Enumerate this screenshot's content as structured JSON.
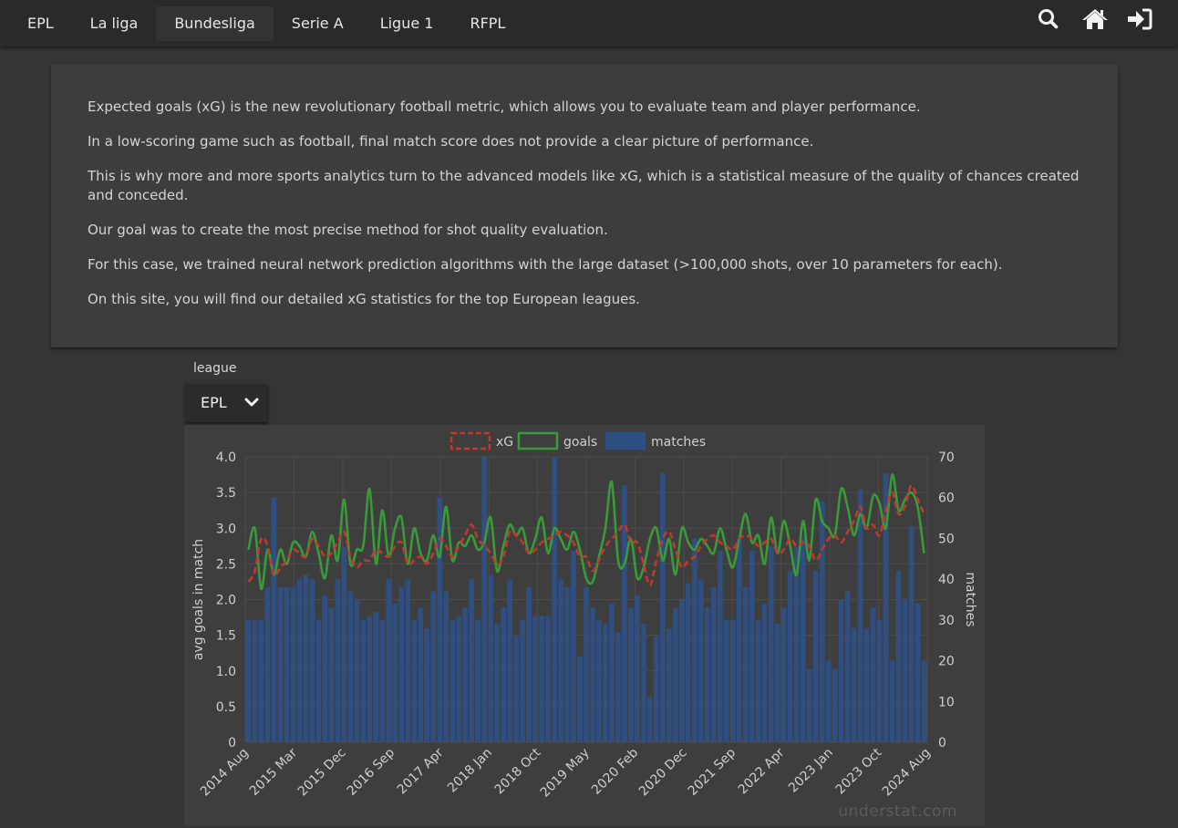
{
  "nav": {
    "items": [
      "EPL",
      "La liga",
      "Bundesliga",
      "Serie A",
      "Ligue 1",
      "RFPL"
    ],
    "active": "Bundesliga",
    "icons": [
      "search-icon",
      "home-icon",
      "sign-in-icon"
    ]
  },
  "info": {
    "paragraphs": [
      "Expected goals (xG) is the new revolutionary football metric, which allows you to evaluate team and player performance.",
      "In a low-scoring game such as football, final match score does not provide a clear picture of performance.",
      "This is why more and more sports analytics turn to the advanced models like xG, which is a statistical measure of the quality of chances created and conceded.",
      "Our goal was to create the most precise method for shot quality evaluation.",
      "For this case, we trained neural network prediction algorithms with the large dataset (>100,000 shots, over 10 parameters for each).",
      "On this site, you will find our detailed xG statistics for the top European leagues."
    ]
  },
  "filter": {
    "label": "league",
    "selected": "EPL"
  },
  "watermark": "understat.com",
  "colors": {
    "xg": "#c0392b",
    "goals": "#3a9a3a",
    "matches": "#2f4f82"
  },
  "chart_data": {
    "type": "bar",
    "legend": [
      "xG",
      "goals",
      "matches"
    ],
    "legend_position": "top",
    "ylabel_left": "avg goals in match",
    "ylabel_right": "matches",
    "ylim_left": [
      0,
      4.0
    ],
    "ylim_right": [
      0,
      70
    ],
    "left_ticks": [
      "0",
      "0.5",
      "1.0",
      "1.5",
      "2.0",
      "2.5",
      "3.0",
      "3.5",
      "4.0"
    ],
    "right_ticks": [
      "0",
      "10",
      "20",
      "30",
      "40",
      "50",
      "60",
      "70"
    ],
    "x_tick_labels": [
      "2014 Aug",
      "2015 Mar",
      "2015 Dec",
      "2016 Sep",
      "2017 Apr",
      "2018 Jan",
      "2018 Oct",
      "2019 May",
      "2020 Feb",
      "2020 Dec",
      "2021 Sep",
      "2022 Apr",
      "2023 Jan",
      "2023 Oct",
      "2024 Aug"
    ],
    "grid": true,
    "series": [
      {
        "name": "matches",
        "kind": "bar",
        "axis": "right",
        "values": [
          30,
          30,
          30,
          38,
          60,
          38,
          38,
          38,
          40,
          41,
          40,
          30,
          36,
          33,
          40,
          48,
          37,
          35,
          30,
          31,
          32,
          30,
          40,
          34,
          38,
          40,
          30,
          33,
          28,
          37,
          60,
          37,
          30,
          31,
          33,
          40,
          30,
          70,
          41,
          29,
          33,
          40,
          26,
          30,
          38,
          31,
          31,
          31,
          70,
          40,
          38,
          47,
          21,
          38,
          33,
          30,
          29,
          34,
          27,
          63,
          33,
          36,
          29,
          11,
          26,
          66,
          28,
          33,
          35,
          39,
          50,
          40,
          33,
          38,
          47,
          30,
          30,
          50,
          38,
          47,
          30,
          34,
          48,
          29,
          33,
          42,
          48,
          50,
          18,
          42,
          59,
          20,
          18,
          35,
          37,
          28,
          62,
          28,
          33,
          30,
          66,
          20,
          42,
          35,
          53,
          34,
          20
        ]
      },
      {
        "name": "xG",
        "kind": "line",
        "axis": "left",
        "style": "dashed",
        "values": [
          2.25,
          2.4,
          2.85,
          2.75,
          2.35,
          2.45,
          2.55,
          2.7,
          2.65,
          2.6,
          2.85,
          2.75,
          2.6,
          2.65,
          2.8,
          2.95,
          2.6,
          2.45,
          2.55,
          2.55,
          2.7,
          2.65,
          2.6,
          2.75,
          2.8,
          2.5,
          2.55,
          2.6,
          2.5,
          2.65,
          2.85,
          2.75,
          2.6,
          2.75,
          2.9,
          3.05,
          2.85,
          2.75,
          2.65,
          2.5,
          2.6,
          2.95,
          2.9,
          2.8,
          2.65,
          2.7,
          2.8,
          2.85,
          2.9,
          2.95,
          2.9,
          2.8,
          2.6,
          2.6,
          2.4,
          2.55,
          2.75,
          2.85,
          2.95,
          3.05,
          2.8,
          2.8,
          2.5,
          2.2,
          2.55,
          2.85,
          2.95,
          2.7,
          2.45,
          2.55,
          2.6,
          2.75,
          2.85,
          2.9,
          2.8,
          2.75,
          2.7,
          2.85,
          2.9,
          2.85,
          2.75,
          2.8,
          2.85,
          2.65,
          2.7,
          2.85,
          2.75,
          2.8,
          2.75,
          2.55,
          2.7,
          2.85,
          2.9,
          2.8,
          2.95,
          3.1,
          3.3,
          3.0,
          3.05,
          2.9,
          3.25,
          3.5,
          3.2,
          3.3,
          3.6,
          3.4,
          3.2
        ]
      },
      {
        "name": "goals",
        "kind": "line",
        "axis": "left",
        "style": "solid",
        "values": [
          2.7,
          3.0,
          2.15,
          2.7,
          2.35,
          2.7,
          2.5,
          2.8,
          2.75,
          2.6,
          2.95,
          2.65,
          2.3,
          2.9,
          2.55,
          3.4,
          2.5,
          2.7,
          2.75,
          3.55,
          2.5,
          3.25,
          2.6,
          3.0,
          3.15,
          2.5,
          3.0,
          2.65,
          2.55,
          2.9,
          2.6,
          3.3,
          2.55,
          2.8,
          2.75,
          2.9,
          2.7,
          2.8,
          3.15,
          2.4,
          2.75,
          3.05,
          2.9,
          3.0,
          2.65,
          2.85,
          3.15,
          2.65,
          3.0,
          2.85,
          2.7,
          2.95,
          2.7,
          2.3,
          2.25,
          2.6,
          3.0,
          3.65,
          2.55,
          2.5,
          2.85,
          2.3,
          2.45,
          2.85,
          3.0,
          2.55,
          2.85,
          2.35,
          3.0,
          2.8,
          2.7,
          2.85,
          2.75,
          2.65,
          3.0,
          2.7,
          2.45,
          2.85,
          3.2,
          2.8,
          2.9,
          2.5,
          3.15,
          2.65,
          3.1,
          2.75,
          2.35,
          3.1,
          2.55,
          3.4,
          3.1,
          3.0,
          2.9,
          3.55,
          3.3,
          2.9,
          3.2,
          3.0,
          3.45,
          3.35,
          3.0,
          3.75,
          3.25,
          3.4,
          3.5,
          3.3,
          2.65
        ]
      }
    ]
  }
}
